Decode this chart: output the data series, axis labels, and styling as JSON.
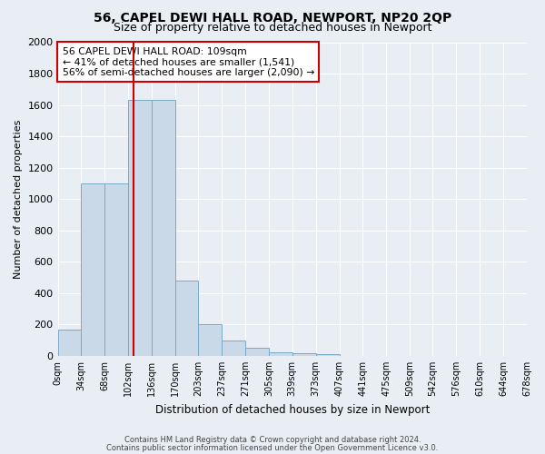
{
  "title": "56, CAPEL DEWI HALL ROAD, NEWPORT, NP20 2QP",
  "subtitle": "Size of property relative to detached houses in Newport",
  "xlabel": "Distribution of detached houses by size in Newport",
  "ylabel": "Number of detached properties",
  "bin_labels": [
    "0sqm",
    "34sqm",
    "68sqm",
    "102sqm",
    "136sqm",
    "170sqm",
    "203sqm",
    "237sqm",
    "271sqm",
    "305sqm",
    "339sqm",
    "373sqm",
    "407sqm",
    "441sqm",
    "475sqm",
    "509sqm",
    "542sqm",
    "576sqm",
    "610sqm",
    "644sqm",
    "678sqm"
  ],
  "bin_edges": [
    0,
    34,
    68,
    102,
    136,
    170,
    203,
    237,
    271,
    305,
    339,
    373,
    407,
    441,
    475,
    509,
    542,
    576,
    610,
    644,
    678
  ],
  "bar_values": [
    165,
    1100,
    1100,
    1630,
    1630,
    480,
    200,
    100,
    50,
    22,
    15,
    10,
    0,
    0,
    0,
    0,
    0,
    0,
    0,
    0
  ],
  "bar_color": "#c9d9e8",
  "bar_edgecolor": "#7aaac8",
  "red_line_x": 109,
  "ylim": [
    0,
    2000
  ],
  "yticks": [
    0,
    200,
    400,
    600,
    800,
    1000,
    1200,
    1400,
    1600,
    1800,
    2000
  ],
  "annotation_title": "56 CAPEL DEWI HALL ROAD: 109sqm",
  "annotation_line1": "← 41% of detached houses are smaller (1,541)",
  "annotation_line2": "56% of semi-detached houses are larger (2,090) →",
  "footer_line1": "Contains HM Land Registry data © Crown copyright and database right 2024.",
  "footer_line2": "Contains public sector information licensed under the Open Government Licence v3.0.",
  "background_color": "#e8eef4",
  "plot_background": "#e8eef4",
  "grid_color": "#ffffff",
  "title_fontsize": 10,
  "subtitle_fontsize": 9,
  "annotation_box_edgecolor": "#cc0000",
  "red_line_color": "#cc0000"
}
